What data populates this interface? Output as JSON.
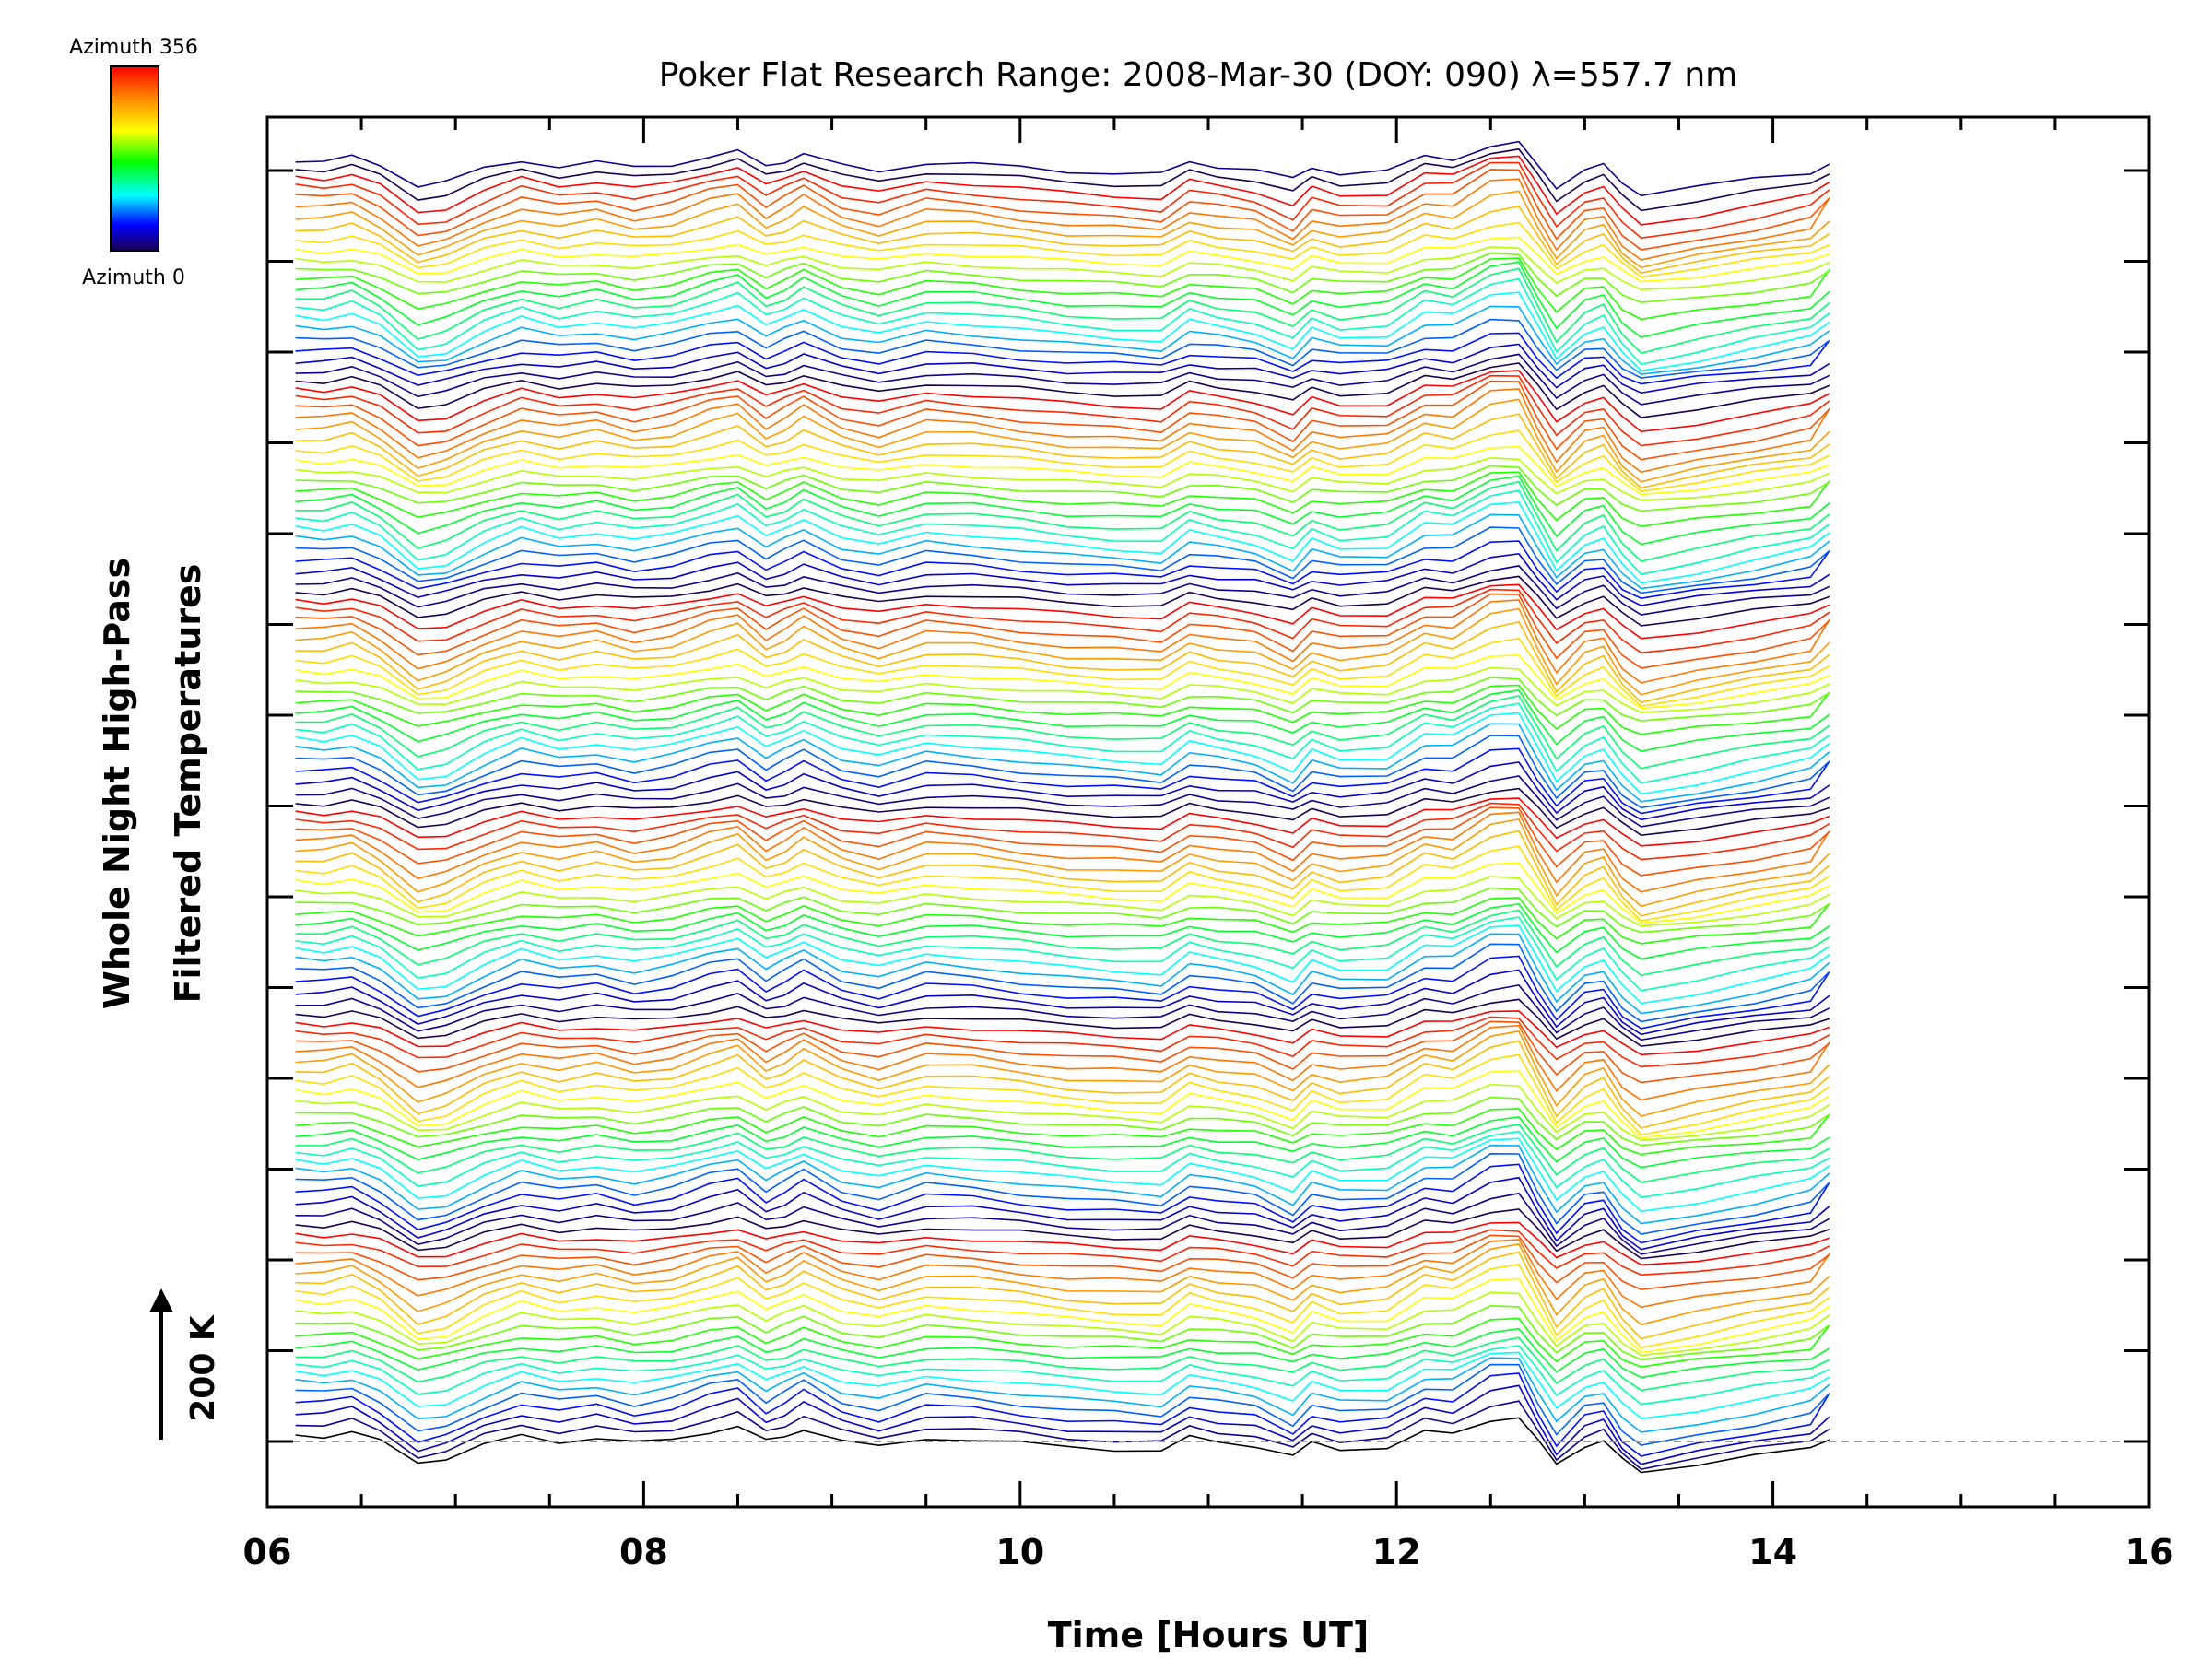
{
  "chart_data": {
    "type": "line",
    "title": "Poker Flat Research Range: 2008-Mar-30 (DOY: 090) λ=557.7 nm",
    "xlabel": "Time [Hours UT]",
    "ylabel_line1": "Whole Night High-Pass",
    "ylabel_line2": "Filtered Temperatures",
    "xlim": [
      6,
      16
    ],
    "x_ticks": [
      "06",
      "08",
      "10",
      "12",
      "14",
      "16"
    ],
    "y_tick_count": 15,
    "scale_bar_label": "200 K",
    "colorbar": {
      "top_label": "Azimuth 356",
      "bottom_label": "Azimuth 0",
      "colors": [
        "#ff0000",
        "#ff8c00",
        "#ffff00",
        "#00ff00",
        "#00ffff",
        "#0000ff",
        "#1a0050"
      ]
    },
    "series_count": 128,
    "x": [
      6.15,
      6.3,
      6.45,
      6.6,
      6.8,
      6.95,
      7.15,
      7.35,
      7.55,
      7.75,
      7.95,
      8.15,
      8.35,
      8.5,
      8.65,
      8.75,
      8.85,
      9.05,
      9.25,
      9.5,
      9.75,
      10.0,
      10.25,
      10.5,
      10.75,
      10.9,
      11.05,
      11.25,
      11.45,
      11.55,
      11.7,
      11.95,
      12.15,
      12.3,
      12.5,
      12.65,
      12.75,
      12.85,
      13.0,
      13.1,
      13.2,
      13.3,
      13.6,
      13.9,
      14.2,
      14.3
    ],
    "reference_profile": [
      0.35,
      0.3,
      0.5,
      0.0,
      -1.1,
      -0.9,
      -0.2,
      0.3,
      0.0,
      0.2,
      -0.1,
      0.1,
      0.55,
      0.8,
      0.0,
      0.3,
      0.7,
      0.0,
      -0.3,
      0.2,
      0.1,
      -0.1,
      -0.3,
      -0.4,
      -0.5,
      0.2,
      0.0,
      -0.2,
      -0.8,
      -0.1,
      -0.4,
      -0.3,
      0.5,
      0.4,
      1.2,
      1.3,
      0.0,
      -1.2,
      -0.2,
      0.0,
      -1.0,
      -1.6,
      -1.2,
      -0.8,
      -0.4,
      0.2
    ],
    "baseline_level": 0
  }
}
